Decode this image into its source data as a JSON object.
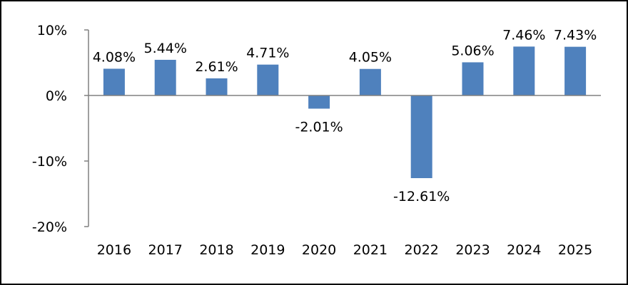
{
  "chart_data": {
    "type": "bar",
    "categories": [
      "2016",
      "2017",
      "2018",
      "2019",
      "2020",
      "2021",
      "2022",
      "2023",
      "2024",
      "2025"
    ],
    "values": [
      4.08,
      5.44,
      2.61,
      4.71,
      -2.01,
      4.05,
      -12.61,
      5.06,
      7.46,
      7.43
    ],
    "data_labels": [
      "4.08%",
      "5.44%",
      "2.61%",
      "4.71%",
      "-2.01%",
      "4.05%",
      "-12.61%",
      "5.06%",
      "7.46%",
      "7.43%"
    ],
    "y_ticks": [
      10,
      0,
      -10,
      -20
    ],
    "y_tick_labels": [
      "10%",
      "0%",
      "-10%",
      "-20%"
    ],
    "ylim": [
      -20,
      10
    ],
    "grid": false,
    "legend": "none",
    "title": "",
    "xlabel": "",
    "ylabel": "",
    "bar_color": "#4F81BD",
    "axis_color": "#808080"
  }
}
